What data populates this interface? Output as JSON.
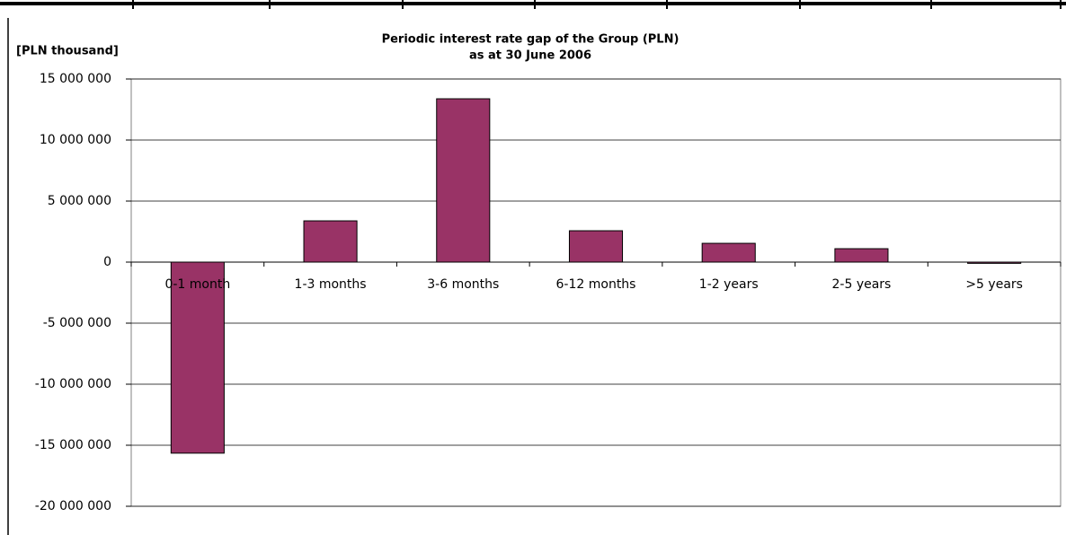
{
  "chart_data": {
    "type": "bar",
    "title": "Periodic interest rate gap of the Group (PLN)",
    "subtitle": "as at 30 June 2006",
    "y_label": "[PLN thousand]",
    "categories": [
      "0-1 month",
      "1-3 months",
      "3-6 months",
      "6-12 months",
      "1-2 years",
      "2-5 years",
      ">5 years"
    ],
    "values": [
      -15650000,
      3380000,
      13380000,
      2570000,
      1540000,
      1100000,
      -100000
    ],
    "color": "#993366",
    "ylim": [
      -20000000,
      15000000
    ],
    "yticks": [
      {
        "value": -20000000,
        "label": "-20 000 000"
      },
      {
        "value": -15000000,
        "label": "-15 000 000"
      },
      {
        "value": -10000000,
        "label": "-10 000 000"
      },
      {
        "value": -5000000,
        "label": "-5 000 000"
      },
      0,
      {
        "value": 5000000,
        "label": "5 000 000"
      },
      {
        "value": 10000000,
        "label": "10 000 000"
      },
      {
        "value": 15000000,
        "label": "15 000 000"
      }
    ],
    "grid": true
  }
}
